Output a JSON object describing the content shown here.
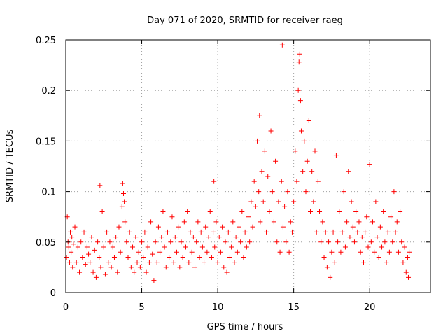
{
  "chart_data": {
    "type": "scatter",
    "title": "Day 071 of 2020, SRMTID for receiver raeg",
    "xlabel": "GPS time / hours",
    "ylabel": "SRMTID / TECUs",
    "xlim": [
      0,
      24
    ],
    "ylim": [
      0,
      0.25
    ],
    "x_ticks": [
      0,
      5,
      10,
      15,
      20
    ],
    "x_tick_labels": [
      "0",
      "5",
      "10",
      "15",
      "20"
    ],
    "y_ticks": [
      0,
      0.05,
      0.1,
      0.15,
      0.2,
      0.25
    ],
    "y_tick_labels": [
      "0",
      "0.05",
      "0.1",
      "0.15",
      "0.2",
      "0.25"
    ],
    "grid": true,
    "marker": "+",
    "series_color": "#ff0000",
    "points": [
      [
        0.05,
        0.035
      ],
      [
        0.1,
        0.075
      ],
      [
        0.15,
        0.05
      ],
      [
        0.2,
        0.045
      ],
      [
        0.25,
        0.03
      ],
      [
        0.3,
        0.06
      ],
      [
        0.35,
        0.04
      ],
      [
        0.4,
        0.055
      ],
      [
        0.45,
        0.025
      ],
      [
        0.5,
        0.048
      ],
      [
        0.6,
        0.065
      ],
      [
        0.7,
        0.03
      ],
      [
        0.8,
        0.045
      ],
      [
        0.9,
        0.02
      ],
      [
        1.0,
        0.05
      ],
      [
        1.1,
        0.035
      ],
      [
        1.2,
        0.06
      ],
      [
        1.3,
        0.028
      ],
      [
        1.4,
        0.045
      ],
      [
        1.5,
        0.038
      ],
      [
        1.6,
        0.03
      ],
      [
        1.7,
        0.055
      ],
      [
        1.8,
        0.02
      ],
      [
        1.9,
        0.042
      ],
      [
        2.0,
        0.015
      ],
      [
        2.1,
        0.05
      ],
      [
        2.2,
        0.035
      ],
      [
        2.25,
        0.106
      ],
      [
        2.3,
        0.025
      ],
      [
        2.4,
        0.08
      ],
      [
        2.5,
        0.045
      ],
      [
        2.6,
        0.018
      ],
      [
        2.7,
        0.06
      ],
      [
        2.8,
        0.03
      ],
      [
        2.9,
        0.05
      ],
      [
        3.0,
        0.025
      ],
      [
        3.1,
        0.045
      ],
      [
        3.2,
        0.035
      ],
      [
        3.3,
        0.055
      ],
      [
        3.4,
        0.02
      ],
      [
        3.5,
        0.065
      ],
      [
        3.6,
        0.04
      ],
      [
        3.7,
        0.085
      ],
      [
        3.75,
        0.108
      ],
      [
        3.8,
        0.098
      ],
      [
        3.85,
        0.09
      ],
      [
        3.9,
        0.07
      ],
      [
        4.0,
        0.05
      ],
      [
        4.1,
        0.035
      ],
      [
        4.2,
        0.06
      ],
      [
        4.3,
        0.025
      ],
      [
        4.4,
        0.045
      ],
      [
        4.5,
        0.02
      ],
      [
        4.6,
        0.055
      ],
      [
        4.7,
        0.03
      ],
      [
        4.8,
        0.04
      ],
      [
        4.9,
        0.025
      ],
      [
        5.0,
        0.05
      ],
      [
        5.1,
        0.035
      ],
      [
        5.2,
        0.06
      ],
      [
        5.3,
        0.02
      ],
      [
        5.4,
        0.045
      ],
      [
        5.5,
        0.03
      ],
      [
        5.6,
        0.07
      ],
      [
        5.7,
        0.038
      ],
      [
        5.8,
        0.012
      ],
      [
        5.9,
        0.05
      ],
      [
        6.0,
        0.03
      ],
      [
        6.1,
        0.065
      ],
      [
        6.2,
        0.04
      ],
      [
        6.3,
        0.055
      ],
      [
        6.4,
        0.08
      ],
      [
        6.5,
        0.045
      ],
      [
        6.6,
        0.025
      ],
      [
        6.7,
        0.06
      ],
      [
        6.8,
        0.035
      ],
      [
        6.9,
        0.05
      ],
      [
        7.0,
        0.075
      ],
      [
        7.1,
        0.03
      ],
      [
        7.2,
        0.055
      ],
      [
        7.3,
        0.04
      ],
      [
        7.4,
        0.065
      ],
      [
        7.5,
        0.025
      ],
      [
        7.6,
        0.05
      ],
      [
        7.7,
        0.035
      ],
      [
        7.8,
        0.07
      ],
      [
        7.9,
        0.045
      ],
      [
        8.0,
        0.08
      ],
      [
        8.1,
        0.03
      ],
      [
        8.2,
        0.06
      ],
      [
        8.3,
        0.04
      ],
      [
        8.4,
        0.055
      ],
      [
        8.5,
        0.025
      ],
      [
        8.6,
        0.05
      ],
      [
        8.7,
        0.07
      ],
      [
        8.8,
        0.035
      ],
      [
        8.9,
        0.06
      ],
      [
        9.0,
        0.045
      ],
      [
        9.1,
        0.03
      ],
      [
        9.2,
        0.065
      ],
      [
        9.3,
        0.04
      ],
      [
        9.4,
        0.055
      ],
      [
        9.5,
        0.08
      ],
      [
        9.6,
        0.035
      ],
      [
        9.7,
        0.06
      ],
      [
        9.75,
        0.11
      ],
      [
        9.8,
        0.045
      ],
      [
        9.9,
        0.07
      ],
      [
        10.0,
        0.03
      ],
      [
        10.1,
        0.055
      ],
      [
        10.2,
        0.04
      ],
      [
        10.3,
        0.065
      ],
      [
        10.4,
        0.025
      ],
      [
        10.5,
        0.05
      ],
      [
        10.6,
        0.02
      ],
      [
        10.7,
        0.06
      ],
      [
        10.8,
        0.035
      ],
      [
        10.9,
        0.045
      ],
      [
        11.0,
        0.07
      ],
      [
        11.1,
        0.03
      ],
      [
        11.2,
        0.055
      ],
      [
        11.3,
        0.04
      ],
      [
        11.4,
        0.065
      ],
      [
        11.5,
        0.05
      ],
      [
        11.6,
        0.08
      ],
      [
        11.7,
        0.035
      ],
      [
        11.8,
        0.06
      ],
      [
        11.9,
        0.045
      ],
      [
        12.0,
        0.075
      ],
      [
        12.1,
        0.05
      ],
      [
        12.2,
        0.09
      ],
      [
        12.3,
        0.065
      ],
      [
        12.4,
        0.11
      ],
      [
        12.5,
        0.085
      ],
      [
        12.6,
        0.15
      ],
      [
        12.7,
        0.1
      ],
      [
        12.75,
        0.175
      ],
      [
        12.8,
        0.07
      ],
      [
        12.9,
        0.12
      ],
      [
        13.0,
        0.09
      ],
      [
        13.1,
        0.14
      ],
      [
        13.2,
        0.06
      ],
      [
        13.3,
        0.115
      ],
      [
        13.4,
        0.08
      ],
      [
        13.5,
        0.16
      ],
      [
        13.6,
        0.1
      ],
      [
        13.7,
        0.07
      ],
      [
        13.8,
        0.13
      ],
      [
        13.9,
        0.05
      ],
      [
        14.0,
        0.09
      ],
      [
        14.1,
        0.04
      ],
      [
        14.2,
        0.11
      ],
      [
        14.25,
        0.245
      ],
      [
        14.3,
        0.065
      ],
      [
        14.4,
        0.085
      ],
      [
        14.5,
        0.05
      ],
      [
        14.6,
        0.1
      ],
      [
        14.7,
        0.04
      ],
      [
        14.8,
        0.07
      ],
      [
        14.9,
        0.06
      ],
      [
        15.0,
        0.09
      ],
      [
        15.1,
        0.14
      ],
      [
        15.2,
        0.11
      ],
      [
        15.3,
        0.2
      ],
      [
        15.35,
        0.228
      ],
      [
        15.4,
        0.236
      ],
      [
        15.45,
        0.19
      ],
      [
        15.5,
        0.16
      ],
      [
        15.6,
        0.12
      ],
      [
        15.7,
        0.15
      ],
      [
        15.8,
        0.1
      ],
      [
        15.9,
        0.13
      ],
      [
        16.0,
        0.17
      ],
      [
        16.1,
        0.08
      ],
      [
        16.2,
        0.12
      ],
      [
        16.3,
        0.09
      ],
      [
        16.4,
        0.14
      ],
      [
        16.5,
        0.06
      ],
      [
        16.6,
        0.11
      ],
      [
        16.7,
        0.08
      ],
      [
        16.8,
        0.05
      ],
      [
        16.9,
        0.07
      ],
      [
        17.0,
        0.035
      ],
      [
        17.1,
        0.06
      ],
      [
        17.2,
        0.025
      ],
      [
        17.3,
        0.05
      ],
      [
        17.4,
        0.015
      ],
      [
        17.5,
        0.04
      ],
      [
        17.6,
        0.06
      ],
      [
        17.7,
        0.03
      ],
      [
        17.8,
        0.136
      ],
      [
        17.9,
        0.05
      ],
      [
        18.0,
        0.08
      ],
      [
        18.1,
        0.04
      ],
      [
        18.2,
        0.06
      ],
      [
        18.3,
        0.1
      ],
      [
        18.4,
        0.045
      ],
      [
        18.5,
        0.07
      ],
      [
        18.6,
        0.12
      ],
      [
        18.7,
        0.055
      ],
      [
        18.8,
        0.09
      ],
      [
        18.9,
        0.065
      ],
      [
        19.0,
        0.05
      ],
      [
        19.1,
        0.08
      ],
      [
        19.2,
        0.06
      ],
      [
        19.3,
        0.07
      ],
      [
        19.4,
        0.04
      ],
      [
        19.5,
        0.055
      ],
      [
        19.6,
        0.03
      ],
      [
        19.7,
        0.06
      ],
      [
        19.8,
        0.075
      ],
      [
        19.9,
        0.045
      ],
      [
        20.0,
        0.127
      ],
      [
        20.1,
        0.05
      ],
      [
        20.2,
        0.07
      ],
      [
        20.3,
        0.04
      ],
      [
        20.4,
        0.09
      ],
      [
        20.5,
        0.055
      ],
      [
        20.6,
        0.035
      ],
      [
        20.7,
        0.065
      ],
      [
        20.8,
        0.045
      ],
      [
        20.9,
        0.08
      ],
      [
        21.0,
        0.05
      ],
      [
        21.1,
        0.03
      ],
      [
        21.2,
        0.06
      ],
      [
        21.3,
        0.04
      ],
      [
        21.4,
        0.075
      ],
      [
        21.5,
        0.05
      ],
      [
        21.6,
        0.1
      ],
      [
        21.7,
        0.06
      ],
      [
        21.8,
        0.07
      ],
      [
        21.9,
        0.04
      ],
      [
        22.0,
        0.08
      ],
      [
        22.1,
        0.05
      ],
      [
        22.2,
        0.03
      ],
      [
        22.3,
        0.045
      ],
      [
        22.4,
        0.02
      ],
      [
        22.5,
        0.035
      ],
      [
        22.55,
        0.015
      ],
      [
        22.6,
        0.04
      ]
    ]
  }
}
